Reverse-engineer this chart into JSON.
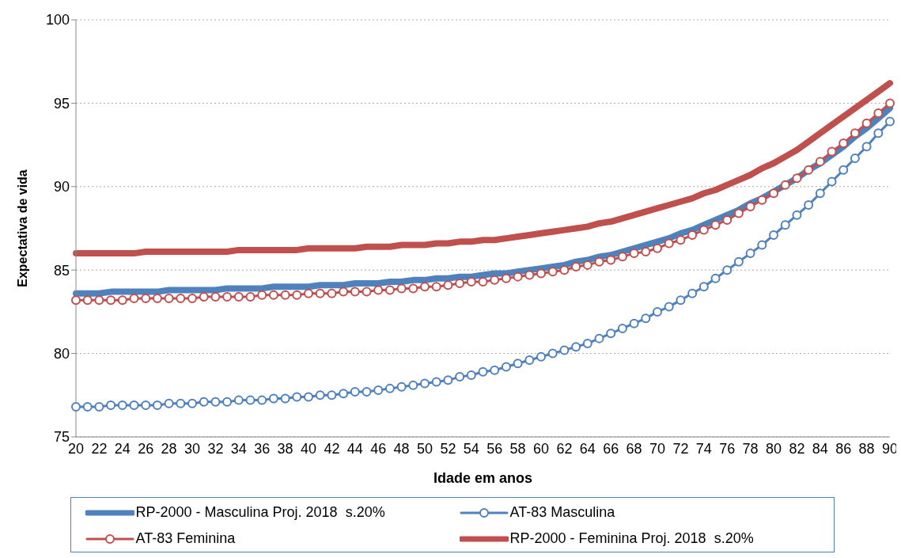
{
  "chart_data": {
    "type": "line",
    "xlabel": "Idade em anos",
    "ylabel": "Expectativa de vida",
    "categories": [
      "20",
      null,
      "22",
      null,
      "24",
      null,
      "26",
      null,
      "28",
      null,
      "30",
      null,
      "32",
      null,
      "34",
      null,
      "36",
      null,
      "38",
      null,
      "40",
      null,
      "42",
      null,
      "44",
      null,
      "46",
      null,
      "48",
      null,
      "50",
      null,
      "52",
      null,
      "54",
      null,
      "56",
      null,
      "58",
      null,
      "60",
      null,
      "62",
      null,
      "64",
      null,
      "66",
      null,
      "68",
      null,
      "70",
      null,
      "72",
      null,
      "74",
      null,
      "76",
      null,
      "78",
      null,
      "80",
      null,
      "82",
      null,
      "84",
      null,
      "86",
      null,
      "88",
      null,
      "90"
    ],
    "ylim": [
      75,
      100
    ],
    "yticks": [
      75,
      80,
      85,
      90,
      95,
      100
    ],
    "grid": "y",
    "legend": "bottom",
    "series": [
      {
        "name": "RP-2000 - Masculina Proj. 2018  s.20%",
        "color": "#4f81bd",
        "marker": "none",
        "values": [
          83.6,
          83.6,
          83.6,
          83.7,
          83.7,
          83.7,
          83.7,
          83.7,
          83.8,
          83.8,
          83.8,
          83.8,
          83.8,
          83.9,
          83.9,
          83.9,
          83.9,
          84.0,
          84.0,
          84.0,
          84.0,
          84.1,
          84.1,
          84.1,
          84.2,
          84.2,
          84.2,
          84.3,
          84.3,
          84.4,
          84.4,
          84.5,
          84.5,
          84.6,
          84.6,
          84.7,
          84.8,
          84.8,
          84.9,
          85.0,
          85.1,
          85.2,
          85.3,
          85.5,
          85.6,
          85.8,
          85.9,
          86.1,
          86.3,
          86.5,
          86.7,
          86.9,
          87.2,
          87.4,
          87.7,
          88.0,
          88.3,
          88.6,
          89.0,
          89.3,
          89.7,
          90.1,
          90.5,
          91.0,
          91.4,
          91.9,
          92.4,
          93.0,
          93.5,
          94.1,
          94.7
        ]
      },
      {
        "name": "AT-83 Masculina",
        "color": "#4f81bd",
        "marker": "circle",
        "values": [
          76.8,
          76.8,
          76.8,
          76.9,
          76.9,
          76.9,
          76.9,
          76.9,
          77.0,
          77.0,
          77.0,
          77.1,
          77.1,
          77.1,
          77.2,
          77.2,
          77.2,
          77.3,
          77.3,
          77.4,
          77.4,
          77.5,
          77.5,
          77.6,
          77.7,
          77.7,
          77.8,
          77.9,
          78.0,
          78.1,
          78.2,
          78.3,
          78.4,
          78.6,
          78.7,
          78.9,
          79.0,
          79.2,
          79.4,
          79.6,
          79.8,
          80.0,
          80.2,
          80.4,
          80.6,
          80.9,
          81.2,
          81.5,
          81.8,
          82.1,
          82.5,
          82.8,
          83.2,
          83.6,
          84.0,
          84.5,
          85.0,
          85.5,
          86.0,
          86.5,
          87.1,
          87.7,
          88.3,
          88.9,
          89.6,
          90.3,
          91.0,
          91.7,
          92.4,
          93.2,
          93.9
        ]
      },
      {
        "name": "AT-83 Feminina",
        "color": "#c0504d",
        "marker": "circle",
        "values": [
          83.2,
          83.2,
          83.2,
          83.2,
          83.2,
          83.3,
          83.3,
          83.3,
          83.3,
          83.3,
          83.3,
          83.4,
          83.4,
          83.4,
          83.4,
          83.4,
          83.5,
          83.5,
          83.5,
          83.5,
          83.6,
          83.6,
          83.6,
          83.7,
          83.7,
          83.7,
          83.8,
          83.8,
          83.9,
          83.9,
          84.0,
          84.0,
          84.1,
          84.2,
          84.3,
          84.3,
          84.4,
          84.5,
          84.6,
          84.7,
          84.8,
          84.9,
          85.0,
          85.2,
          85.3,
          85.5,
          85.6,
          85.8,
          86.0,
          86.1,
          86.3,
          86.6,
          86.8,
          87.1,
          87.4,
          87.7,
          88.0,
          88.4,
          88.8,
          89.2,
          89.6,
          90.1,
          90.5,
          91.0,
          91.5,
          92.1,
          92.6,
          93.2,
          93.8,
          94.4,
          95.0
        ]
      },
      {
        "name": "RP-2000 - Feminina Proj. 2018  s.20%",
        "color": "#c0504d",
        "marker": "none",
        "values": [
          86.0,
          86.0,
          86.0,
          86.0,
          86.0,
          86.0,
          86.1,
          86.1,
          86.1,
          86.1,
          86.1,
          86.1,
          86.1,
          86.1,
          86.2,
          86.2,
          86.2,
          86.2,
          86.2,
          86.2,
          86.3,
          86.3,
          86.3,
          86.3,
          86.3,
          86.4,
          86.4,
          86.4,
          86.5,
          86.5,
          86.5,
          86.6,
          86.6,
          86.7,
          86.7,
          86.8,
          86.8,
          86.9,
          87.0,
          87.1,
          87.2,
          87.3,
          87.4,
          87.5,
          87.6,
          87.8,
          87.9,
          88.1,
          88.3,
          88.5,
          88.7,
          88.9,
          89.1,
          89.3,
          89.6,
          89.8,
          90.1,
          90.4,
          90.7,
          91.1,
          91.4,
          91.8,
          92.2,
          92.7,
          93.2,
          93.7,
          94.2,
          94.7,
          95.2,
          95.7,
          96.2
        ]
      }
    ]
  }
}
